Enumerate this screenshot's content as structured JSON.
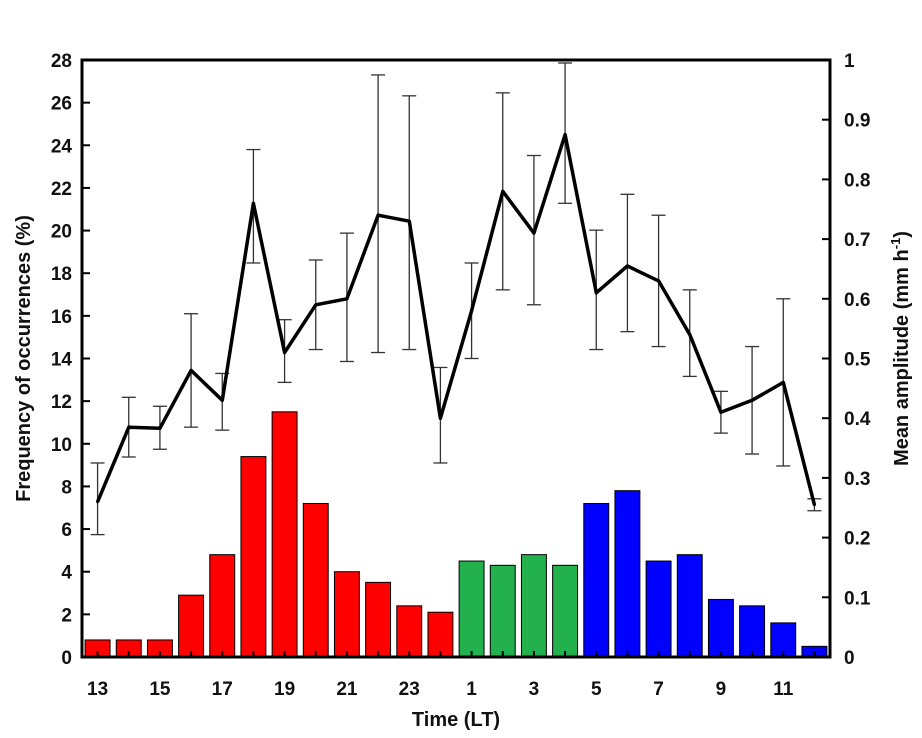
{
  "chart_data": {
    "type": "bar",
    "xlabel": "Time (LT)",
    "ylabel": "Frequency of occurrences (%)",
    "y2label": {
      "main": "Mean amplitude (mm h",
      "sup": "-1",
      "close": ")"
    },
    "ylim": [
      0,
      28
    ],
    "y2lim": [
      0,
      1
    ],
    "yticks": [
      0,
      2,
      4,
      6,
      8,
      10,
      12,
      14,
      16,
      18,
      20,
      22,
      24,
      26,
      28
    ],
    "y2ticks": [
      0,
      0.1,
      0.2,
      0.3,
      0.4,
      0.5,
      0.6,
      0.7,
      0.8,
      0.9,
      1
    ],
    "y2tick_labels": [
      "0",
      "0.1",
      "0.2",
      "0.3",
      "0.4",
      "0.5",
      "0.6",
      "0.7",
      "0.8",
      "0.9",
      "1"
    ],
    "categories": [
      "13",
      "14",
      "15",
      "16",
      "17",
      "18",
      "19",
      "20",
      "21",
      "22",
      "23",
      "24",
      "1",
      "2",
      "3",
      "4",
      "5",
      "6",
      "7",
      "8",
      "9",
      "10",
      "11",
      "12"
    ],
    "xtick_labels": [
      "13",
      "",
      "15",
      "",
      "17",
      "",
      "19",
      "",
      "21",
      "",
      "23",
      "",
      "1",
      "",
      "3",
      "",
      "5",
      "",
      "7",
      "",
      "9",
      "",
      "11",
      ""
    ],
    "colors": {
      "red": "#ff0000",
      "green": "#22b14c",
      "blue": "#0000ff",
      "line": "#000000"
    },
    "series": [
      {
        "type": "bar",
        "axis": "left",
        "values": [
          0.8,
          0.8,
          0.8,
          2.9,
          4.8,
          9.4,
          11.5,
          7.2,
          4.0,
          3.5,
          2.4,
          2.1,
          4.5,
          4.3,
          4.8,
          4.3,
          7.2,
          7.8,
          4.5,
          4.8,
          2.7,
          2.4,
          1.6,
          0.5
        ],
        "bar_colors": [
          "red",
          "red",
          "red",
          "red",
          "red",
          "red",
          "red",
          "red",
          "red",
          "red",
          "red",
          "red",
          "green",
          "green",
          "green",
          "green",
          "blue",
          "blue",
          "blue",
          "blue",
          "blue",
          "blue",
          "blue",
          "blue"
        ]
      },
      {
        "type": "line",
        "axis": "right",
        "values": [
          0.26,
          0.385,
          0.383,
          0.48,
          0.43,
          0.76,
          0.51,
          0.59,
          0.6,
          0.74,
          0.73,
          0.4,
          0.58,
          0.78,
          0.71,
          0.875,
          0.61,
          0.655,
          0.63,
          0.54,
          0.41,
          0.43,
          0.46,
          0.255
        ],
        "err_upper": [
          0.325,
          0.435,
          0.42,
          0.575,
          0.475,
          0.85,
          0.565,
          0.665,
          0.71,
          0.975,
          0.94,
          0.485,
          0.66,
          0.945,
          0.84,
          0.995,
          0.715,
          0.775,
          0.74,
          0.615,
          0.445,
          0.52,
          0.6,
          0.265
        ],
        "err_lower": [
          0.205,
          0.335,
          0.348,
          0.385,
          0.38,
          0.66,
          0.46,
          0.515,
          0.495,
          0.51,
          0.515,
          0.325,
          0.5,
          0.615,
          0.59,
          0.76,
          0.515,
          0.545,
          0.52,
          0.47,
          0.375,
          0.34,
          0.32,
          0.245
        ]
      }
    ],
    "grid": false,
    "legend": "none"
  }
}
